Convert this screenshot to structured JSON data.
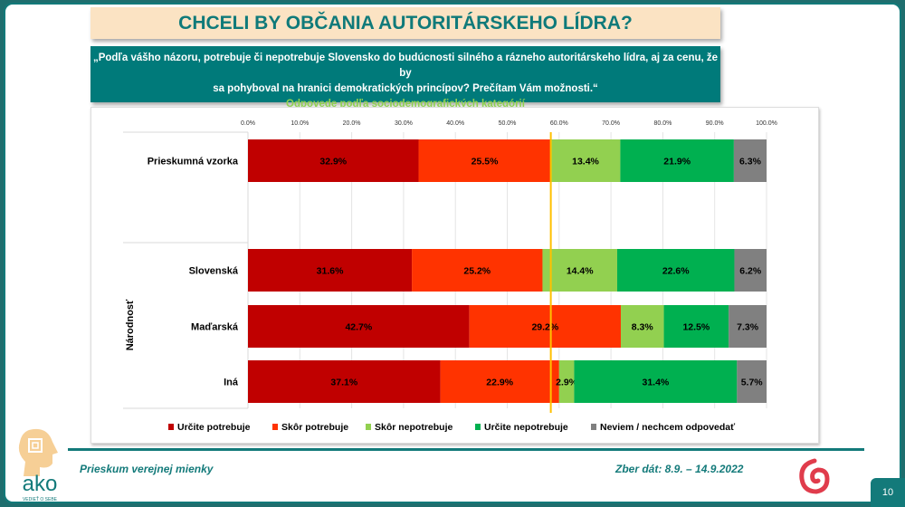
{
  "header": {
    "title": "CHCELI BY OBČANIA AUTORITÁRSKEHO LÍDRA?",
    "question_line1": "„Podľa vášho názoru, potrebuje či nepotrebuje Slovensko do budúcnosti silného a rázneho autoritárskeho lídra, aj za cenu, že by",
    "question_line2": "sa pohyboval na hranici demokratických princípov? Prečítam Vám možnosti.“",
    "subtitle": "Odpovede podľa sociodemografických kategórií"
  },
  "chart_data": {
    "type": "bar",
    "orientation": "horizontal",
    "stacked": true,
    "xlim": [
      0,
      100
    ],
    "ticks": [
      "0.0%",
      "10.0%",
      "20.0%",
      "30.0%",
      "40.0%",
      "50.0%",
      "60.0%",
      "70.0%",
      "80.0%",
      "90.0%",
      "100.0%"
    ],
    "group_label": "Národnosť",
    "categories": [
      "Prieskumná vzorka",
      "Slovenská",
      "Maďarská",
      "Iná"
    ],
    "series": [
      {
        "name": "Určite potrebuje",
        "color": "#c00000",
        "values": [
          32.9,
          31.6,
          42.7,
          37.1
        ]
      },
      {
        "name": "Skôr potrebuje",
        "color": "#ff3300",
        "values": [
          25.5,
          25.2,
          29.2,
          22.9
        ]
      },
      {
        "name": "Skôr nepotrebuje",
        "color": "#92d050",
        "values": [
          13.4,
          14.4,
          8.3,
          2.9
        ]
      },
      {
        "name": "Určite nepotrebuje",
        "color": "#00b050",
        "values": [
          21.9,
          22.6,
          12.5,
          31.4
        ]
      },
      {
        "name": "Neviem / nechcem odpovedať",
        "color": "#808080",
        "values": [
          6.3,
          6.2,
          7.3,
          5.7
        ]
      }
    ],
    "reference_line": {
      "value": 58.4,
      "color": "#ffc000"
    },
    "legend": "bottom",
    "grid": true
  },
  "footer": {
    "left": "Prieskum verejnej mienky",
    "right": "Zber dát: 8.9. – 14.9.2022",
    "page": "10",
    "logo": "ako",
    "logo_tagline": "VEDIEŤ O SEBE"
  }
}
